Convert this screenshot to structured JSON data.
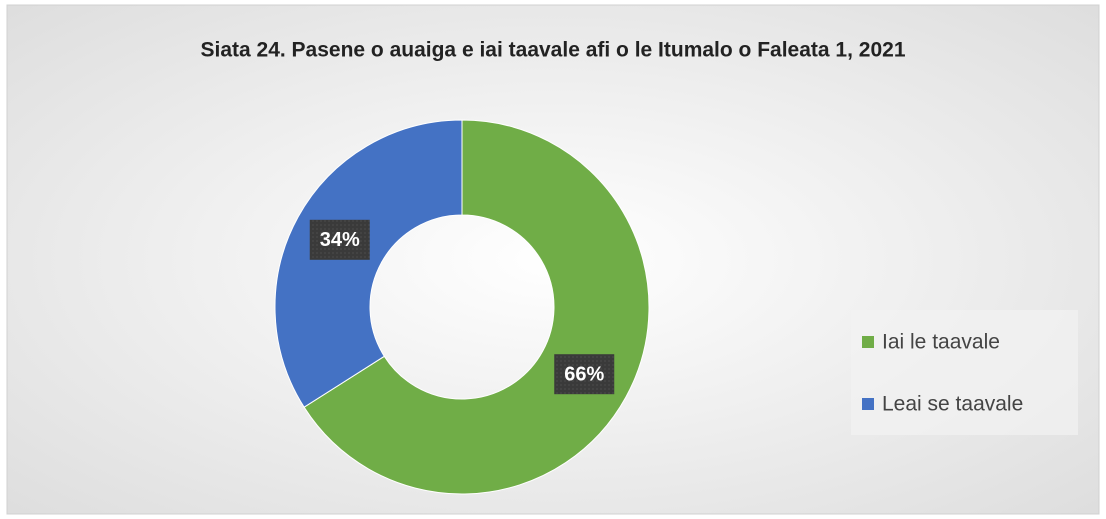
{
  "chart_data": {
    "type": "donut",
    "title": "Siata 24. Pasene o auaiga e iai taavale afi o le Itumalo o Faleata 1, 2021",
    "categories": [
      "Iai le taavale",
      "Leai se taavale"
    ],
    "values": [
      66,
      34
    ],
    "value_labels": [
      "66%",
      "34%"
    ],
    "colors": [
      "#70ad47",
      "#4472c4"
    ],
    "legend": "right"
  }
}
